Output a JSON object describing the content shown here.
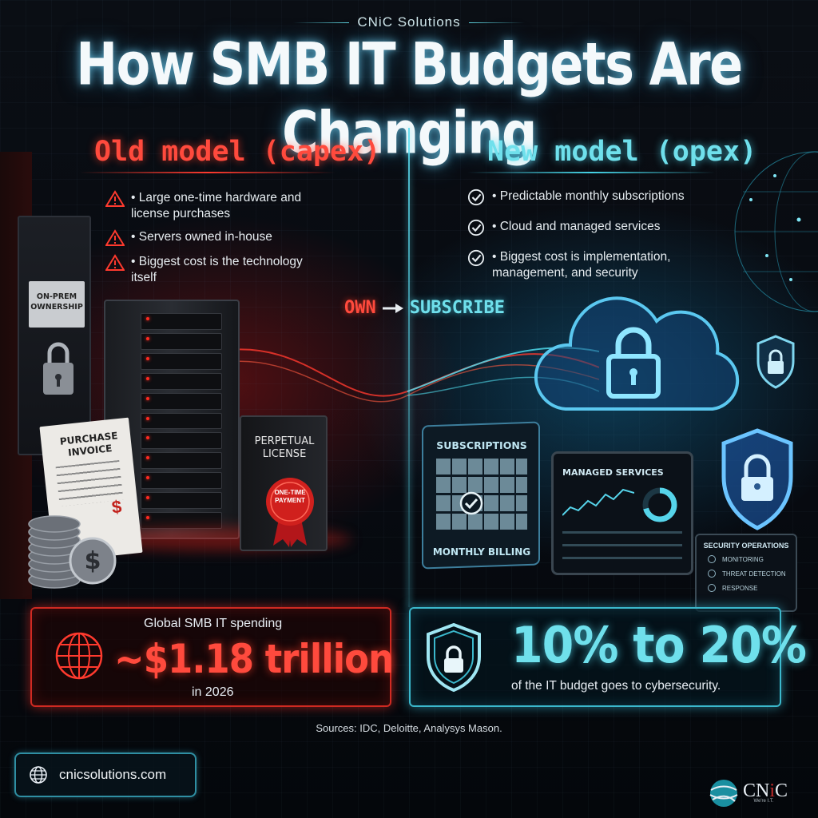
{
  "brand": "CNiC Solutions",
  "title": "How SMB IT Budgets Are Changing",
  "old_model": {
    "heading": "Old model (capex)",
    "bullets": [
      "• Large one-time hardware and license purchases",
      "• Servers owned in-house",
      "• Biggest cost is the technology itself"
    ],
    "color": "#ff4a3d"
  },
  "new_model": {
    "heading": "New model (opex)",
    "bullets": [
      "• Predictable monthly subscriptions",
      "• Cloud and managed services",
      "• Biggest cost is implementation, management, and security"
    ],
    "color": "#6fe0ec"
  },
  "transition": {
    "from": "OWN",
    "to": "SUBSCRIBE"
  },
  "left_scene": {
    "door_sign": "ON-PREM OWNERSHIP",
    "invoice": "PURCHASE INVOICE",
    "license": "PERPETUAL LICENSE",
    "seal": "ONE-TIME PAYMENT"
  },
  "right_scene": {
    "calendar_title": "SUBSCRIPTIONS",
    "calendar_footer": "MONTHLY BILLING",
    "dashboard_title": "MANAGED SERVICES",
    "secops_title": "SECURITY OPERATIONS",
    "secops_items": [
      "MONITORING",
      "THREAT DETECTION",
      "RESPONSE"
    ]
  },
  "stats": {
    "spending_label": "Global SMB IT spending",
    "spending_value": "~$1.18 trillion",
    "spending_year": "in 2026",
    "security_value": "10% to 20%",
    "security_desc": "of the IT budget goes to cybersecurity."
  },
  "sources": "Sources: IDC, Deloitte, Analysys Mason.",
  "website": "cnicsolutions.com",
  "logo": {
    "name": "CNiC",
    "tagline": "We're I.T."
  }
}
